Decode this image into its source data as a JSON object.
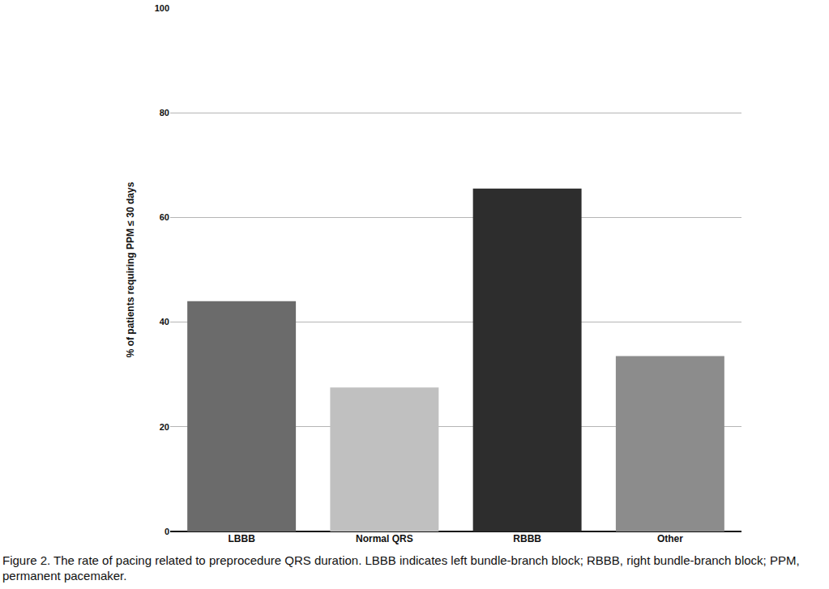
{
  "chart_data": {
    "type": "bar",
    "y_label": "% of patients requiring PPM ≤ 30 days",
    "categories": [
      "LBBB",
      "Normal QRS",
      "RBBB",
      "Other"
    ],
    "values": [
      44,
      27.5,
      65.5,
      33.5
    ],
    "colors": [
      "#6b6b6b",
      "#c0c0c0",
      "#2d2d2d",
      "#8c8c8c"
    ],
    "ylim": [
      0,
      100
    ],
    "yticks": [
      0,
      20,
      40,
      60,
      80,
      100
    ],
    "grid": true,
    "annotations": [
      "Figure 2. The rate of pacing related to preprocedure QRS duration. LBBB indicates left bundle-branch block; RBBB, right bundle-branch block; PPM, permanent pacemaker."
    ]
  }
}
